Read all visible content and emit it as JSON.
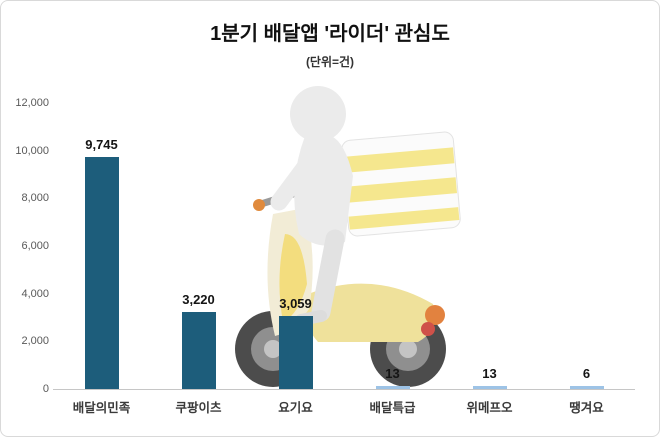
{
  "title": "1분기 배달앱 '라이더' 관심도",
  "subtitle": "(단위=건)",
  "chart_data": {
    "type": "bar",
    "title": "1분기 배달앱 '라이더' 관심도",
    "subtitle": "(단위=건)",
    "categories": [
      "배달의민족",
      "쿠팡이츠",
      "요기요",
      "배달특급",
      "위메프오",
      "땡겨요"
    ],
    "values": [
      9745,
      3220,
      3059,
      13,
      13,
      6
    ],
    "value_labels": [
      "9,745",
      "3,220",
      "3,059",
      "13",
      "13",
      "6"
    ],
    "xlabel": "",
    "ylabel": "",
    "ylim": [
      0,
      12000
    ],
    "yticks": [
      0,
      2000,
      4000,
      6000,
      8000,
      10000,
      12000
    ],
    "ytick_labels": [
      "0",
      "2,000",
      "4,000",
      "6,000",
      "8,000",
      "10,000",
      "12,000"
    ],
    "grid": false,
    "legend": false,
    "bar_color": "#1d5d7b",
    "tiny_bar_color": "#9dc3e6"
  },
  "colors": {
    "frame_border": "#d9d9d9",
    "axis_line": "#c6c6c6",
    "axis_text": "#595959",
    "category_text": "#3a3a3a",
    "value_text": "#141414"
  },
  "illustration": "delivery-rider-on-scooter"
}
